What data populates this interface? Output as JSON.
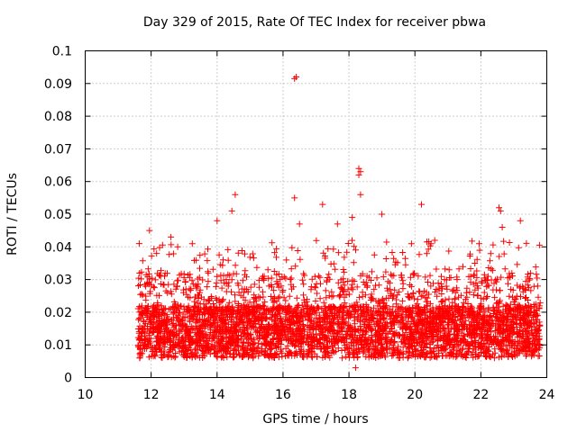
{
  "chart_data": {
    "type": "scatter",
    "title": "Day 329 of 2015, Rate Of TEC Index for receiver pbwa",
    "xlabel": "GPS time / hours",
    "ylabel": "ROTI / TECUs",
    "xlim": [
      10,
      24
    ],
    "ylim": [
      0,
      0.1
    ],
    "xticks": [
      "10",
      "12",
      "14",
      "16",
      "18",
      "20",
      "22",
      "24"
    ],
    "yticks": [
      "0",
      "0.01",
      "0.02",
      "0.03",
      "0.04",
      "0.05",
      "0.06",
      "0.07",
      "0.08",
      "0.09",
      "0.1"
    ],
    "grid": true,
    "marker": "+",
    "color": "#ff0000",
    "series": [
      {
        "x_start": 11.6,
        "x_end": 23.8,
        "typical_range": [
          0.005,
          0.03
        ],
        "notable_points": [
          {
            "x": 16.4,
            "y": 0.092
          },
          {
            "x": 16.35,
            "y": 0.0915
          },
          {
            "x": 18.3,
            "y": 0.064
          },
          {
            "x": 18.35,
            "y": 0.063
          },
          {
            "x": 18.3,
            "y": 0.062
          },
          {
            "x": 14.55,
            "y": 0.056
          },
          {
            "x": 18.35,
            "y": 0.056
          },
          {
            "x": 16.35,
            "y": 0.055
          },
          {
            "x": 17.2,
            "y": 0.053
          },
          {
            "x": 20.2,
            "y": 0.053
          },
          {
            "x": 22.55,
            "y": 0.052
          },
          {
            "x": 22.6,
            "y": 0.051
          },
          {
            "x": 14.45,
            "y": 0.051
          },
          {
            "x": 18.1,
            "y": 0.049
          },
          {
            "x": 19.0,
            "y": 0.05
          },
          {
            "x": 23.2,
            "y": 0.048
          },
          {
            "x": 14.0,
            "y": 0.048
          },
          {
            "x": 11.95,
            "y": 0.045
          },
          {
            "x": 16.5,
            "y": 0.047
          },
          {
            "x": 17.65,
            "y": 0.047
          },
          {
            "x": 12.6,
            "y": 0.043
          },
          {
            "x": 22.65,
            "y": 0.046
          },
          {
            "x": 20.6,
            "y": 0.042
          },
          {
            "x": 21.95,
            "y": 0.041
          },
          {
            "x": 18.2,
            "y": 0.003
          }
        ]
      }
    ]
  }
}
